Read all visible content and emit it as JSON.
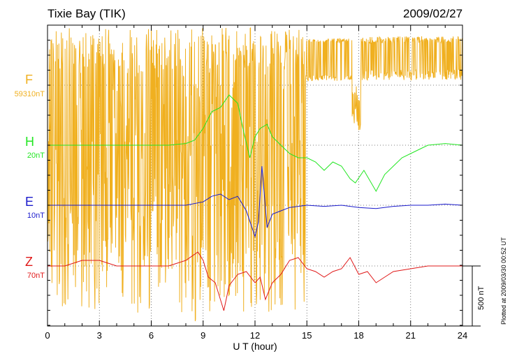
{
  "header": {
    "station": "Tixie Bay (TIK)",
    "date": "2009/02/27"
  },
  "channels": [
    {
      "name": "F",
      "scale": "59310nT",
      "color": "#f0b020"
    },
    {
      "name": "H",
      "scale": "20nT",
      "color": "#22e622"
    },
    {
      "name": "E",
      "scale": "10nT",
      "color": "#1a1acc"
    },
    {
      "name": "Z",
      "scale": "70nT",
      "color": "#e01818"
    }
  ],
  "scalebar": {
    "label": "500 nT"
  },
  "plotted_note": "Plotted at 2009/03/30 00:52 UT",
  "chart_data": {
    "type": "line",
    "xlabel": "U T (hour)",
    "xlim": [
      0,
      24
    ],
    "x_ticks": [
      "0",
      "3",
      "6",
      "9",
      "12",
      "15",
      "18",
      "21",
      "24"
    ],
    "series": [
      {
        "name": "H",
        "x": [
          0,
          1,
          2,
          3,
          4,
          5,
          6,
          7,
          8,
          8.5,
          9,
          9.5,
          10,
          10.5,
          11,
          11.3,
          11.7,
          12,
          12.3,
          12.7,
          13,
          13.5,
          14,
          14.5,
          15,
          15.5,
          16,
          16.5,
          17,
          17.5,
          17.8,
          18.3,
          19,
          19.5,
          20,
          20.5,
          21,
          21.5,
          22,
          23,
          24
        ],
        "values": [
          0,
          0,
          0,
          0,
          0,
          0,
          0,
          0,
          2,
          6,
          20,
          40,
          45,
          60,
          50,
          20,
          -15,
          10,
          20,
          25,
          10,
          0,
          -10,
          -15,
          -15,
          -20,
          -30,
          -20,
          -25,
          -40,
          -45,
          -30,
          -55,
          -35,
          -25,
          -15,
          -10,
          -5,
          0,
          2,
          0
        ]
      },
      {
        "name": "E",
        "x": [
          0,
          2,
          4,
          6,
          8,
          9,
          9.5,
          10,
          10.5,
          11,
          11.5,
          12,
          12.2,
          12.4,
          12.7,
          13,
          13.5,
          14,
          15,
          16,
          17,
          18,
          19,
          20,
          21,
          22,
          23,
          24
        ],
        "values": [
          0,
          0,
          0,
          0,
          0,
          3,
          8,
          10,
          5,
          8,
          -5,
          -28,
          -15,
          35,
          -20,
          -8,
          -5,
          -2,
          0,
          -1,
          0,
          -2,
          -3,
          -1,
          0,
          0,
          1,
          0
        ]
      },
      {
        "name": "Z",
        "x": [
          0,
          1,
          2,
          3,
          4,
          5,
          6,
          7,
          8,
          8.7,
          9,
          9.3,
          9.7,
          10.2,
          10.5,
          11,
          11.5,
          12,
          12.3,
          12.6,
          13,
          13.5,
          14,
          14.5,
          15,
          15.5,
          16,
          16.5,
          17,
          17.5,
          18,
          18.5,
          19,
          19.5,
          20,
          21,
          22,
          23,
          24
        ],
        "values": [
          0,
          0,
          0.2,
          0.2,
          0,
          0,
          0,
          0,
          0.2,
          0.5,
          0.2,
          -0.4,
          -0.6,
          -1.6,
          -0.7,
          -0.3,
          -0.2,
          -0.6,
          -0.4,
          -1.2,
          -0.6,
          -0.3,
          0.2,
          0.3,
          -0.1,
          -0.2,
          -0.4,
          -0.2,
          -0.1,
          0.3,
          -0.3,
          -0.2,
          -0.6,
          -0.4,
          -0.2,
          -0.1,
          0,
          0,
          0
        ]
      }
    ]
  }
}
